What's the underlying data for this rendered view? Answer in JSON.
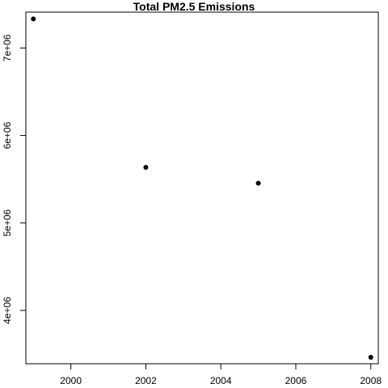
{
  "chart_data": {
    "type": "scatter",
    "title": "Total PM2.5 Emissions",
    "xlabel": "",
    "ylabel": "",
    "x": [
      1999,
      2002,
      2005,
      2008
    ],
    "y": [
      7332967,
      5635780,
      5454703,
      3464206
    ],
    "xlim": [
      1998.8,
      2008.2
    ],
    "ylim": [
      3390000,
      7410000
    ],
    "x_ticks": [
      2000,
      2002,
      2004,
      2006,
      2008
    ],
    "x_tick_labels": [
      "2000",
      "2002",
      "2004",
      "2006",
      "2008"
    ],
    "y_ticks": [
      4000000,
      5000000,
      6000000,
      7000000
    ],
    "y_tick_labels": [
      "4e+06",
      "5e+06",
      "6e+06",
      "7e+06"
    ],
    "grid": false,
    "legend": "none",
    "point_color": "#000000"
  }
}
